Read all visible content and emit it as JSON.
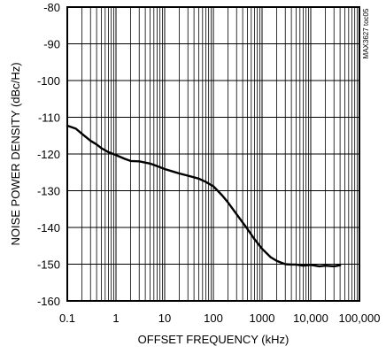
{
  "chart_data": {
    "type": "line",
    "xlabel": "OFFSET FREQUENCY (kHz)",
    "ylabel": "NOISE POWER DENSITY (dBc/Hz)",
    "code_label": "MAX3627 toc05",
    "x_scale": "log",
    "xlim": [
      0.1,
      100000
    ],
    "ylim": [
      -160,
      -80
    ],
    "grid": true,
    "x_ticks": [
      {
        "value": 0.1,
        "label": "0.1"
      },
      {
        "value": 1,
        "label": "1"
      },
      {
        "value": 10,
        "label": "10"
      },
      {
        "value": 100,
        "label": "100"
      },
      {
        "value": 1000,
        "label": "1000"
      },
      {
        "value": 10000,
        "label": "10,000"
      },
      {
        "value": 100000,
        "label": "100,000"
      }
    ],
    "y_ticks": [
      {
        "value": -80,
        "label": "-80"
      },
      {
        "value": -90,
        "label": "-90"
      },
      {
        "value": -100,
        "label": "-100"
      },
      {
        "value": -110,
        "label": "-110"
      },
      {
        "value": -120,
        "label": "-120"
      },
      {
        "value": -130,
        "label": "-130"
      },
      {
        "value": -140,
        "label": "-140"
      },
      {
        "value": -150,
        "label": "-150"
      },
      {
        "value": -160,
        "label": "-160"
      }
    ],
    "series": [
      {
        "color": "#000000",
        "x": [
          0.1,
          0.15,
          0.2,
          0.3,
          0.4,
          0.5,
          0.7,
          1,
          1.5,
          2,
          3,
          5,
          7,
          10,
          15,
          20,
          30,
          50,
          70,
          100,
          150,
          200,
          300,
          500,
          700,
          1000,
          1500,
          2000,
          2500,
          3000,
          4000,
          5000,
          7000,
          10000,
          15000,
          20000,
          30000,
          40000
        ],
        "y": [
          -112.3,
          -113.1,
          -114.5,
          -116.4,
          -117.4,
          -118.4,
          -119.5,
          -120.3,
          -121.3,
          -121.9,
          -122.0,
          -122.6,
          -123.3,
          -124.1,
          -124.8,
          -125.3,
          -125.9,
          -126.7,
          -127.6,
          -128.8,
          -131.2,
          -133.2,
          -136.4,
          -140.4,
          -143.2,
          -145.8,
          -148.1,
          -149.1,
          -149.6,
          -150.0,
          -150.1,
          -150.1,
          -150.4,
          -150.2,
          -150.6,
          -150.4,
          -150.6,
          -150.3
        ]
      }
    ]
  }
}
